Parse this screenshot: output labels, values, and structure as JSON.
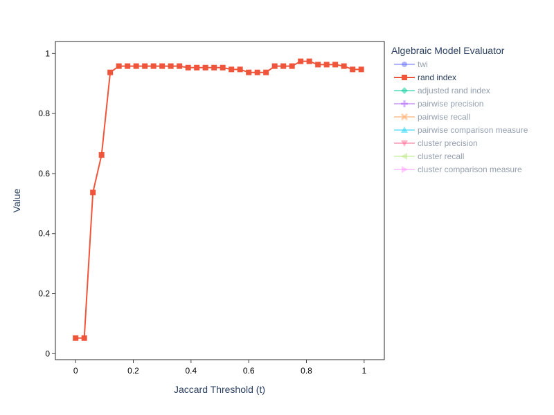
{
  "chart_data": {
    "type": "line",
    "xlabel": "Jaccard Threshold (t)",
    "ylabel": "Value",
    "xlim": [
      -0.07,
      1.07
    ],
    "ylim": [
      -0.02,
      1.04
    ],
    "x_ticks": [
      0,
      0.2,
      0.4,
      0.6,
      0.8,
      1
    ],
    "x_tick_labels": [
      "0",
      "0.2",
      "0.4",
      "0.6",
      "0.8",
      "1"
    ],
    "y_ticks": [
      0,
      0.2,
      0.4,
      0.6,
      0.8,
      1
    ],
    "y_tick_labels": [
      "0",
      "0.2",
      "0.4",
      "0.6",
      "0.8",
      "1"
    ],
    "grid": false,
    "legend_title": "Algebraic Model Evaluator",
    "legend_position": "right",
    "series": [
      {
        "name": "twi",
        "color": "#636efa",
        "marker": "circle",
        "visible": false,
        "x": [],
        "values": []
      },
      {
        "name": "rand index",
        "color": "#ef553b",
        "marker": "square",
        "visible": true,
        "x": [
          0,
          0.03,
          0.06,
          0.09,
          0.12,
          0.15,
          0.18,
          0.21,
          0.24,
          0.27,
          0.3,
          0.33,
          0.36,
          0.39,
          0.42,
          0.45,
          0.48,
          0.51,
          0.54,
          0.57,
          0.6,
          0.63,
          0.66,
          0.69,
          0.72,
          0.75,
          0.78,
          0.81,
          0.84,
          0.87,
          0.9,
          0.93,
          0.96,
          0.99
        ],
        "values": [
          0.052,
          0.052,
          0.537,
          0.662,
          0.937,
          0.958,
          0.958,
          0.958,
          0.958,
          0.958,
          0.958,
          0.958,
          0.958,
          0.953,
          0.953,
          0.953,
          0.953,
          0.953,
          0.947,
          0.947,
          0.937,
          0.937,
          0.937,
          0.958,
          0.958,
          0.958,
          0.974,
          0.974,
          0.963,
          0.963,
          0.963,
          0.958,
          0.947,
          0.947
        ]
      },
      {
        "name": "adjusted rand index",
        "color": "#00cc96",
        "marker": "diamond",
        "visible": false,
        "x": [],
        "values": []
      },
      {
        "name": "pairwise precision",
        "color": "#ab63fa",
        "marker": "cross",
        "visible": false,
        "x": [],
        "values": []
      },
      {
        "name": "pairwise recall",
        "color": "#ffa15a",
        "marker": "x",
        "visible": false,
        "x": [],
        "values": []
      },
      {
        "name": "pairwise comparison measure",
        "color": "#19d3f3",
        "marker": "triangle-up",
        "visible": false,
        "x": [],
        "values": []
      },
      {
        "name": "cluster precision",
        "color": "#ff6692",
        "marker": "triangle-down",
        "visible": false,
        "x": [],
        "values": []
      },
      {
        "name": "cluster recall",
        "color": "#b6e880",
        "marker": "triangle-left",
        "visible": false,
        "x": [],
        "values": []
      },
      {
        "name": "cluster comparison measure",
        "color": "#ff97ff",
        "marker": "triangle-right",
        "visible": false,
        "x": [],
        "values": []
      }
    ]
  }
}
